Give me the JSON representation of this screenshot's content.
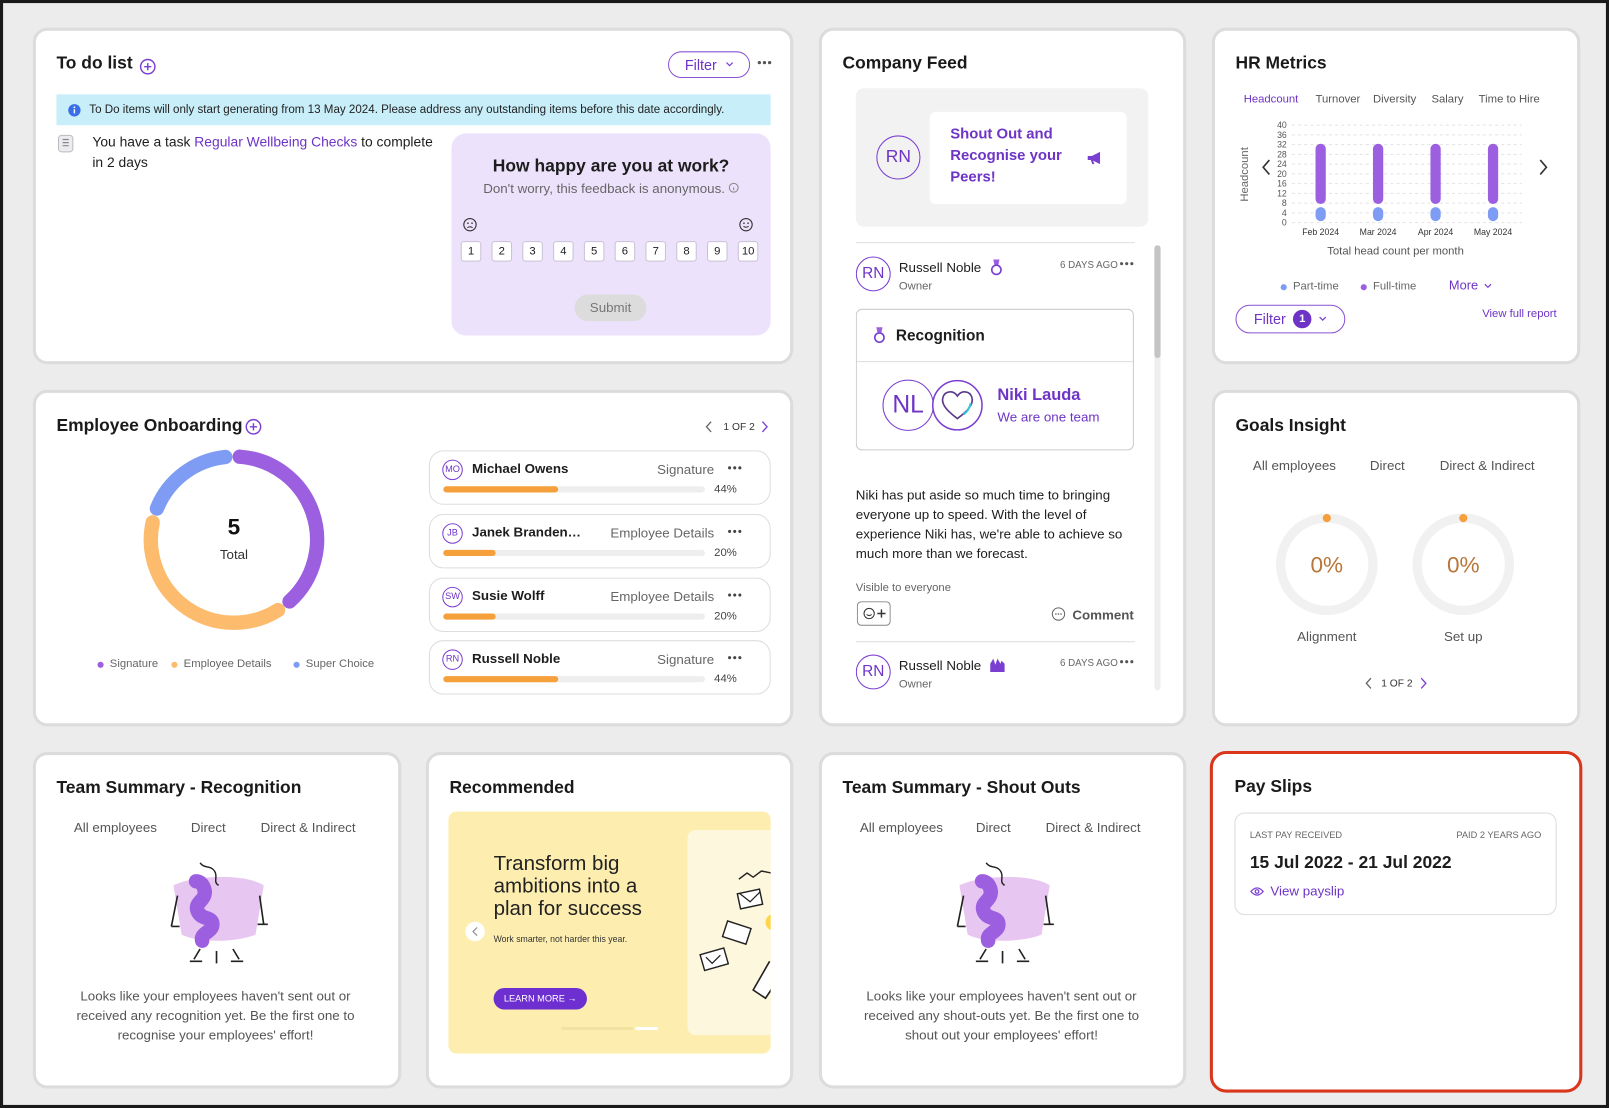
{
  "todo": {
    "title": "To do list",
    "filter": "Filter",
    "notice": "To Do items will only start generating from 13 May 2024. Please address any outstanding items before this date accordingly.",
    "task": {
      "prefix": "You have a task",
      "link": "Regular Wellbeing Checks",
      "suffix": "to complete in 2 days"
    },
    "survey": {
      "question": "How happy are you at work?",
      "note": "Don't worry, this feedback is anonymous.",
      "scale": [
        1,
        2,
        3,
        4,
        5,
        6,
        7,
        8,
        9,
        10
      ],
      "submit": "Submit"
    }
  },
  "onboarding": {
    "title": "Employee Onboarding",
    "pager": "1 OF 2",
    "total": 5,
    "total_label": "Total",
    "segments": [
      {
        "name": "Signature",
        "value": 2,
        "color": "#9b5fe0"
      },
      {
        "name": "Employee Details",
        "value": 2,
        "color": "#fdbb6e"
      },
      {
        "name": "Super Choice",
        "value": 1,
        "color": "#7f9cf5"
      }
    ],
    "employees": [
      {
        "initials": "MO",
        "name": "Michael Owens",
        "stage": "Signature",
        "progress": 44,
        "progress_label": "44%"
      },
      {
        "initials": "JB",
        "name": "Janek Branden…",
        "stage": "Employee Details",
        "progress": 20,
        "progress_label": "20%"
      },
      {
        "initials": "SW",
        "name": "Susie Wolff",
        "stage": "Employee Details",
        "progress": 20,
        "progress_label": "20%"
      },
      {
        "initials": "RN",
        "name": "Russell Noble",
        "stage": "Signature",
        "progress": 44,
        "progress_label": "44%"
      }
    ]
  },
  "feed": {
    "title": "Company Feed",
    "shout_out": {
      "initials": "RN",
      "text": "Shout Out and Recognise your Peers!"
    },
    "posts": [
      {
        "initials": "RN",
        "author": "Russell Noble",
        "role": "Owner",
        "time": "6 DAYS AGO",
        "recognition": {
          "heading": "Recognition",
          "initials": "NL",
          "name": "Niki Lauda",
          "badge": "We are one team"
        },
        "message": "Niki has put aside so much time to bringing everyone up to speed. With the level of experience Niki has, we're able to achieve so much more than we forecast.",
        "visibility": "Visible to everyone",
        "comment": "Comment"
      },
      {
        "initials": "RN",
        "author": "Russell Noble",
        "role": "Owner",
        "time": "6 DAYS AGO"
      }
    ]
  },
  "hr_metrics": {
    "title": "HR Metrics",
    "tabs": [
      "Headcount",
      "Turnover",
      "Diversity",
      "Salary",
      "Time to Hire"
    ],
    "active_tab": 0,
    "chart": {
      "type": "bar",
      "stacked": true,
      "y_label": "Headcount",
      "x_label": "Total head count per month",
      "categories": [
        "Feb 2024",
        "Mar 2024",
        "Apr 2024",
        "May 2024"
      ],
      "series": [
        {
          "name": "Part-time",
          "color": "#7f9cf5",
          "values": [
            7,
            7,
            7,
            7
          ]
        },
        {
          "name": "Full-time",
          "color": "#9b5fe0",
          "values": [
            26,
            26,
            26,
            26
          ]
        }
      ],
      "ylim": [
        0,
        40
      ],
      "yticks": [
        0,
        4,
        8,
        12,
        16,
        20,
        24,
        28,
        32,
        36,
        40
      ],
      "grid": true
    },
    "more": "More",
    "filter": "Filter",
    "filter_count": 1,
    "view_report": "View full report"
  },
  "goals": {
    "title": "Goals Insight",
    "tabs": [
      "All employees",
      "Direct",
      "Direct & Indirect"
    ],
    "active_tab": 1,
    "gauges": [
      {
        "label": "Alignment",
        "value": 0,
        "value_label": "0%"
      },
      {
        "label": "Set up",
        "value": 0,
        "value_label": "0%"
      }
    ],
    "pager": "1 OF 2"
  },
  "recognition_summary": {
    "title": "Team Summary - Recognition",
    "tabs": [
      "All employees",
      "Direct",
      "Direct & Indirect"
    ],
    "active_tab": 1,
    "empty_text": "Looks like your employees haven't sent out or received any recognition yet. Be the first one to recognise your employees' effort!"
  },
  "recommended": {
    "title": "Recommended",
    "headline": "Transform big ambitions into a plan for success",
    "subline": "Work smarter, not harder this year.",
    "cta": "LEARN MORE →"
  },
  "shout_summary": {
    "title": "Team Summary - Shout Outs",
    "tabs": [
      "All employees",
      "Direct",
      "Direct & Indirect"
    ],
    "active_tab": 1,
    "empty_text": "Looks like your employees haven't sent out or received any shout-outs yet. Be the first one to shout out your employees' effort!"
  },
  "payslips": {
    "title": "Pay Slips",
    "caption": "LAST PAY RECEIVED",
    "paid": "PAID 2 YEARS AGO",
    "period": "15 Jul 2022 - 21 Jul 2022",
    "link": "View payslip"
  }
}
